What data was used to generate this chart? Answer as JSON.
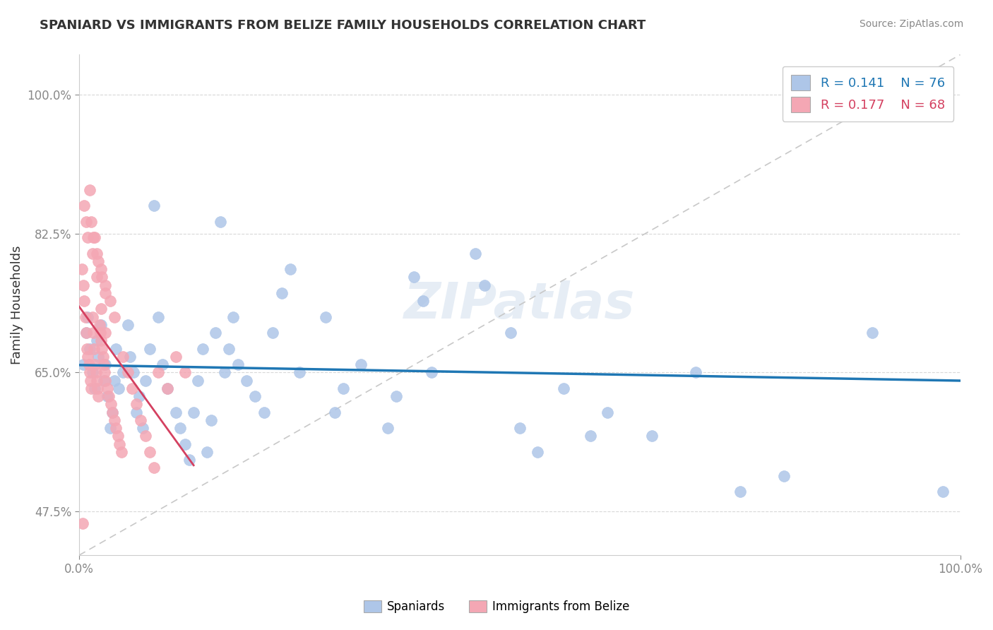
{
  "title": "SPANIARD VS IMMIGRANTS FROM BELIZE FAMILY HOUSEHOLDS CORRELATION CHART",
  "source": "Source: ZipAtlas.com",
  "ylabel_label": "Family Households",
  "xlim": [
    0,
    1.0
  ],
  "ylim": [
    0.42,
    1.05
  ],
  "ytick_positions": [
    0.475,
    0.65,
    0.825,
    1.0
  ],
  "ytick_labels": [
    "47.5%",
    "65.0%",
    "82.5%",
    "100.0%"
  ],
  "r_spaniard": 0.141,
  "n_spaniard": 76,
  "r_belize": 0.177,
  "n_belize": 68,
  "spaniard_color": "#aec6e8",
  "belize_color": "#f4a7b4",
  "spaniard_line_color": "#1f77b4",
  "belize_line_color": "#d44060",
  "diagonal_color": "#c8c8c8",
  "watermark": "ZIPatlas",
  "legend_label_spaniard": "Spaniards",
  "legend_label_belize": "Immigrants from Belize",
  "spaniard_points": [
    [
      0.005,
      0.66
    ],
    [
      0.008,
      0.7
    ],
    [
      0.01,
      0.72
    ],
    [
      0.012,
      0.68
    ],
    [
      0.015,
      0.65
    ],
    [
      0.018,
      0.63
    ],
    [
      0.02,
      0.69
    ],
    [
      0.022,
      0.67
    ],
    [
      0.025,
      0.71
    ],
    [
      0.028,
      0.64
    ],
    [
      0.03,
      0.66
    ],
    [
      0.032,
      0.62
    ],
    [
      0.035,
      0.58
    ],
    [
      0.038,
      0.6
    ],
    [
      0.04,
      0.64
    ],
    [
      0.042,
      0.68
    ],
    [
      0.045,
      0.63
    ],
    [
      0.05,
      0.65
    ],
    [
      0.055,
      0.71
    ],
    [
      0.058,
      0.67
    ],
    [
      0.062,
      0.65
    ],
    [
      0.065,
      0.6
    ],
    [
      0.068,
      0.62
    ],
    [
      0.072,
      0.58
    ],
    [
      0.075,
      0.64
    ],
    [
      0.08,
      0.68
    ],
    [
      0.085,
      0.86
    ],
    [
      0.09,
      0.72
    ],
    [
      0.095,
      0.66
    ],
    [
      0.1,
      0.63
    ],
    [
      0.11,
      0.6
    ],
    [
      0.115,
      0.58
    ],
    [
      0.12,
      0.56
    ],
    [
      0.125,
      0.54
    ],
    [
      0.13,
      0.6
    ],
    [
      0.135,
      0.64
    ],
    [
      0.14,
      0.68
    ],
    [
      0.145,
      0.55
    ],
    [
      0.15,
      0.59
    ],
    [
      0.155,
      0.7
    ],
    [
      0.16,
      0.84
    ],
    [
      0.165,
      0.65
    ],
    [
      0.17,
      0.68
    ],
    [
      0.175,
      0.72
    ],
    [
      0.18,
      0.66
    ],
    [
      0.19,
      0.64
    ],
    [
      0.2,
      0.62
    ],
    [
      0.21,
      0.6
    ],
    [
      0.22,
      0.7
    ],
    [
      0.23,
      0.75
    ],
    [
      0.24,
      0.78
    ],
    [
      0.25,
      0.65
    ],
    [
      0.28,
      0.72
    ],
    [
      0.29,
      0.6
    ],
    [
      0.3,
      0.63
    ],
    [
      0.32,
      0.66
    ],
    [
      0.35,
      0.58
    ],
    [
      0.36,
      0.62
    ],
    [
      0.38,
      0.77
    ],
    [
      0.39,
      0.74
    ],
    [
      0.4,
      0.65
    ],
    [
      0.45,
      0.8
    ],
    [
      0.46,
      0.76
    ],
    [
      0.49,
      0.7
    ],
    [
      0.5,
      0.58
    ],
    [
      0.52,
      0.55
    ],
    [
      0.55,
      0.63
    ],
    [
      0.58,
      0.57
    ],
    [
      0.6,
      0.6
    ],
    [
      0.65,
      0.57
    ],
    [
      0.7,
      0.65
    ],
    [
      0.75,
      0.5
    ],
    [
      0.8,
      0.52
    ],
    [
      0.85,
      1.0
    ],
    [
      0.9,
      0.7
    ],
    [
      0.98,
      0.5
    ]
  ],
  "belize_points": [
    [
      0.003,
      0.78
    ],
    [
      0.005,
      0.76
    ],
    [
      0.006,
      0.74
    ],
    [
      0.007,
      0.72
    ],
    [
      0.008,
      0.7
    ],
    [
      0.009,
      0.68
    ],
    [
      0.01,
      0.67
    ],
    [
      0.011,
      0.66
    ],
    [
      0.012,
      0.65
    ],
    [
      0.013,
      0.64
    ],
    [
      0.014,
      0.63
    ],
    [
      0.015,
      0.72
    ],
    [
      0.016,
      0.7
    ],
    [
      0.017,
      0.68
    ],
    [
      0.018,
      0.66
    ],
    [
      0.019,
      0.65
    ],
    [
      0.02,
      0.64
    ],
    [
      0.021,
      0.63
    ],
    [
      0.022,
      0.62
    ],
    [
      0.023,
      0.71
    ],
    [
      0.024,
      0.7
    ],
    [
      0.025,
      0.69
    ],
    [
      0.026,
      0.68
    ],
    [
      0.027,
      0.67
    ],
    [
      0.028,
      0.66
    ],
    [
      0.029,
      0.65
    ],
    [
      0.03,
      0.64
    ],
    [
      0.032,
      0.63
    ],
    [
      0.034,
      0.62
    ],
    [
      0.036,
      0.61
    ],
    [
      0.038,
      0.6
    ],
    [
      0.04,
      0.59
    ],
    [
      0.042,
      0.58
    ],
    [
      0.044,
      0.57
    ],
    [
      0.046,
      0.56
    ],
    [
      0.048,
      0.55
    ],
    [
      0.05,
      0.67
    ],
    [
      0.055,
      0.65
    ],
    [
      0.06,
      0.63
    ],
    [
      0.065,
      0.61
    ],
    [
      0.07,
      0.59
    ],
    [
      0.075,
      0.57
    ],
    [
      0.08,
      0.55
    ],
    [
      0.085,
      0.53
    ],
    [
      0.09,
      0.65
    ],
    [
      0.1,
      0.63
    ],
    [
      0.11,
      0.67
    ],
    [
      0.12,
      0.65
    ],
    [
      0.02,
      0.8
    ],
    [
      0.025,
      0.78
    ],
    [
      0.03,
      0.76
    ],
    [
      0.035,
      0.74
    ],
    [
      0.04,
      0.72
    ],
    [
      0.01,
      0.82
    ],
    [
      0.015,
      0.8
    ],
    [
      0.008,
      0.84
    ],
    [
      0.006,
      0.86
    ],
    [
      0.004,
      0.46
    ],
    [
      0.012,
      0.88
    ],
    [
      0.018,
      0.82
    ],
    [
      0.022,
      0.79
    ],
    [
      0.026,
      0.77
    ],
    [
      0.03,
      0.75
    ],
    [
      0.014,
      0.84
    ],
    [
      0.016,
      0.82
    ],
    [
      0.02,
      0.77
    ],
    [
      0.025,
      0.73
    ],
    [
      0.03,
      0.7
    ]
  ]
}
